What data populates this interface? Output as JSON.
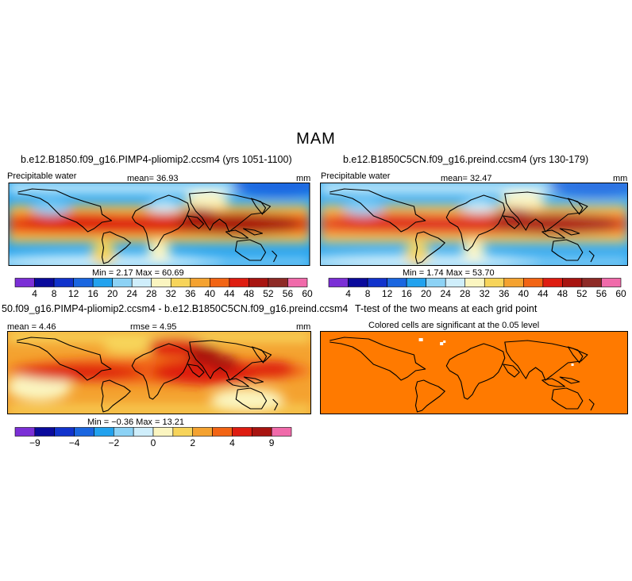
{
  "season": "MAM",
  "colorbar_abs": {
    "colors": [
      "#7b2fd6",
      "#0a0a9c",
      "#1133cc",
      "#1a66e0",
      "#22a2ee",
      "#8cd2f5",
      "#cfeefb",
      "#fbf5c0",
      "#f7d45a",
      "#f4a230",
      "#f26414",
      "#de1c10",
      "#a81410",
      "#8e2a26",
      "#f06aaa"
    ],
    "labels": [
      "4",
      "8",
      "12",
      "16",
      "20",
      "24",
      "28",
      "32",
      "36",
      "40",
      "44",
      "48",
      "52",
      "56",
      "60"
    ]
  },
  "colorbar_diff": {
    "colors": [
      "#7b2fd6",
      "#0a0a9c",
      "#1133cc",
      "#1a66e0",
      "#22a2ee",
      "#8cd2f5",
      "#cfeefb",
      "#fbf5c0",
      "#f7d45a",
      "#f4a230",
      "#f26414",
      "#de1c10",
      "#a81410",
      "#f06aaa"
    ],
    "ticks": [
      {
        "after": 1,
        "label": "−9"
      },
      {
        "after": 3,
        "label": "−4"
      },
      {
        "after": 5,
        "label": "−2"
      },
      {
        "after": 7,
        "label": "0"
      },
      {
        "after": 9,
        "label": "2"
      },
      {
        "after": 11,
        "label": "4"
      },
      {
        "after": 13,
        "label": "9"
      }
    ]
  },
  "chart_data": [
    {
      "type": "heatmap",
      "title": "b.e12.B1850.f09_g16.PIMP4-pliomip2.ccsm4 (yrs 1051-1100)",
      "variable": "Precipitable water",
      "mean_text": "mean=   36.93",
      "units": "mm",
      "minmax_text": "Min =    2.17  Max =   60.69",
      "min": 2.17,
      "max": 60.69,
      "mean": 36.93
    },
    {
      "type": "heatmap",
      "title": "b.e12.B1850C5CN.f09_g16.preind.ccsm4 (yrs 130-179)",
      "variable": "Precipitable water",
      "mean_text": "mean=   32.47",
      "units": "mm",
      "minmax_text": "Min =    1.74  Max =   53.70",
      "min": 1.74,
      "max": 53.7,
      "mean": 32.47
    },
    {
      "type": "heatmap",
      "title": "50.f09_g16.PIMP4-pliomip2.ccsm4 - b.e12.B1850C5CN.f09_g16.preind.ccsm4",
      "mean_text": "mean =    4.46",
      "rmse_text": "rmse =   4.95",
      "units": "mm",
      "minmax_text": "Min =  −0.36  Max =   13.21",
      "min": -0.36,
      "max": 13.21,
      "mean": 4.46,
      "rmse": 4.95
    },
    {
      "type": "heatmap",
      "title": "T-test of the two means at each grid point",
      "subtitle": "Colored cells are significant at the 0.05 level"
    }
  ]
}
